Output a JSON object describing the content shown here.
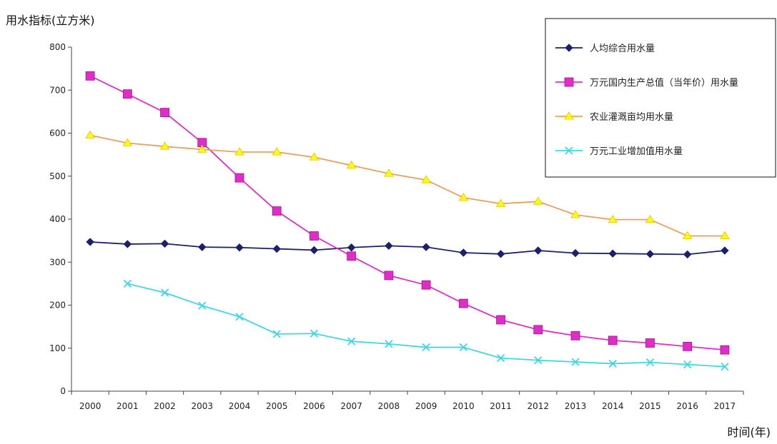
{
  "chart_data": {
    "type": "line",
    "ylabel": "用水指标(立方米)",
    "xlabel": "时间(年)",
    "ylim": [
      0,
      800
    ],
    "yticks": [
      "0",
      "100",
      "200",
      "300",
      "400",
      "500",
      "600",
      "700",
      "800"
    ],
    "categories": [
      "2000",
      "2001",
      "2002",
      "2003",
      "2004",
      "2005",
      "2006",
      "2007",
      "2008",
      "2009",
      "2010",
      "2011",
      "2012",
      "2013",
      "2014",
      "2015",
      "2016",
      "2017"
    ],
    "legend_position": "top-right",
    "series": [
      {
        "name": "人均综合用水量",
        "color": "#1a1f6e",
        "marker": "diamond",
        "values": [
          347,
          342,
          343,
          335,
          334,
          331,
          328,
          334,
          338,
          335,
          322,
          319,
          327,
          321,
          320,
          319,
          318,
          327
        ]
      },
      {
        "name": "万元国内生产总值（当年价）用水量",
        "color": "#e02cc8",
        "marker": "square",
        "values": [
          733,
          691,
          648,
          578,
          496,
          419,
          361,
          314,
          269,
          247,
          204,
          166,
          143,
          129,
          118,
          112,
          104,
          96
        ]
      },
      {
        "name": "农业灌溉亩均用水量",
        "color": "#e8a060",
        "marker": "triangle",
        "values": [
          595,
          577,
          569,
          562,
          556,
          556,
          544,
          525,
          506,
          491,
          450,
          436,
          441,
          410,
          399,
          399,
          361,
          361
        ]
      },
      {
        "name": "万元工业增加值用水量",
        "color": "#3fd6e6",
        "marker": "x",
        "values": [
          null,
          250,
          229,
          199,
          173,
          133,
          134,
          116,
          110,
          102,
          102,
          77,
          72,
          68,
          64,
          67,
          62,
          57
        ]
      }
    ]
  }
}
